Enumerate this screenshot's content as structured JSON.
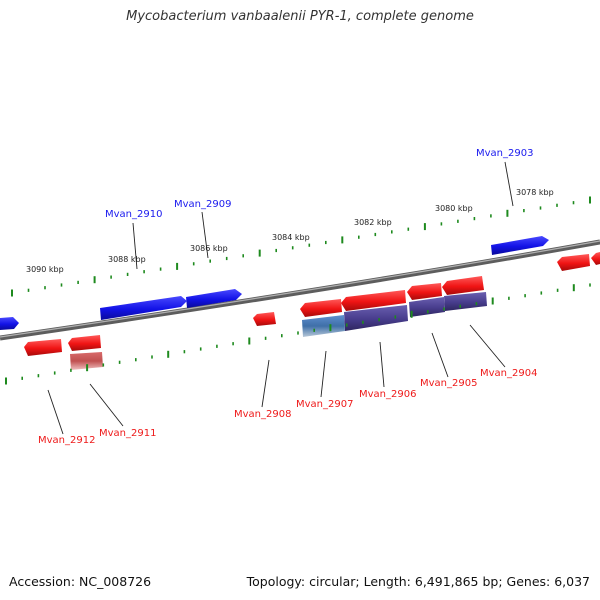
{
  "title": "Mycobacterium vanbaalenii PYR-1, complete genome",
  "footer": {
    "accession": "Accession: NC_008726",
    "summary": "Topology: circular; Length: 6,491,865 bp; Genes: 6,037"
  },
  "colors": {
    "forward_gene": "#1a1aee",
    "reverse_gene": "#ee1a1a",
    "secondary_feature": "#4b3f8f",
    "tick": "#1e8a1e",
    "backbone": "#777777"
  },
  "kbp_labels": [
    "3078 kbp",
    "3080 kbp",
    "3082 kbp",
    "3084 kbp",
    "3086 kbp",
    "3088 kbp",
    "3090 kbp"
  ],
  "genes": [
    {
      "id": "Mvan_2903",
      "strand": "forward"
    },
    {
      "id": "Mvan_2904",
      "strand": "reverse"
    },
    {
      "id": "Mvan_2905",
      "strand": "reverse"
    },
    {
      "id": "Mvan_2906",
      "strand": "reverse"
    },
    {
      "id": "Mvan_2907",
      "strand": "reverse"
    },
    {
      "id": "Mvan_2908",
      "strand": "reverse"
    },
    {
      "id": "Mvan_2909",
      "strand": "forward"
    },
    {
      "id": "Mvan_2910",
      "strand": "forward"
    },
    {
      "id": "Mvan_2911",
      "strand": "reverse"
    },
    {
      "id": "Mvan_2912",
      "strand": "reverse"
    }
  ]
}
